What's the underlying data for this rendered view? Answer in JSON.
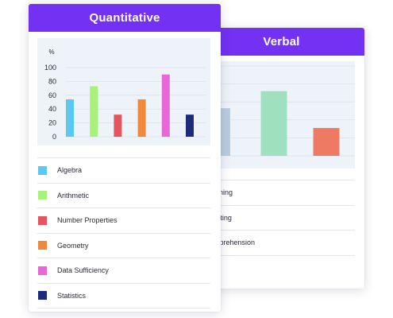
{
  "verbal_card": {
    "title": "Verbal",
    "legend": [
      {
        "label": "Reasoning",
        "color": "#b9cde0"
      },
      {
        "label": "cal Writing",
        "color": "#9fe0c0"
      },
      {
        "label": "g Comprehension",
        "color": "#ee7a63"
      }
    ]
  },
  "quant_card": {
    "title": "Quantitative",
    "unit_label": "%",
    "legend": [
      {
        "label": "Algebra",
        "color": "#5bc8f2",
        "icon": "square-swatch"
      },
      {
        "label": "Arithmetic",
        "color": "#a6f27a",
        "icon": "square-swatch"
      },
      {
        "label": "Number Properties",
        "color": "#e5555f",
        "icon": "square-swatch"
      },
      {
        "label": "Geometry",
        "color": "#f1893c",
        "icon": "square-swatch"
      },
      {
        "label": "Data Sufficiency",
        "color": "#e866d6",
        "icon": "square-swatch"
      },
      {
        "label": "Statistics",
        "color": "#1c2c7a",
        "icon": "square-swatch"
      }
    ]
  },
  "chart_data": [
    {
      "type": "bar",
      "title": "Quantitative",
      "ylabel": "%",
      "ylim": [
        0,
        100
      ],
      "yticks": [
        0,
        20,
        40,
        60,
        80,
        100
      ],
      "grid": true,
      "categories": [
        "Algebra",
        "Arithmetic",
        "Number Properties",
        "Geometry",
        "Data Sufficiency",
        "Statistics"
      ],
      "values": [
        54,
        73,
        32,
        54,
        90,
        32
      ],
      "colors": [
        "#5bc8f2",
        "#a6f27a",
        "#e5555f",
        "#f1893c",
        "#e866d6",
        "#1c2c7a"
      ]
    },
    {
      "type": "bar",
      "title": "Verbal",
      "ylim": [
        0,
        100
      ],
      "grid": true,
      "categories": [
        "Reasoning",
        "cal Writing",
        "g Comprehension"
      ],
      "values": [
        53,
        72,
        31
      ],
      "colors": [
        "#b9cde0",
        "#9fe0c0",
        "#ee7a63"
      ]
    }
  ]
}
